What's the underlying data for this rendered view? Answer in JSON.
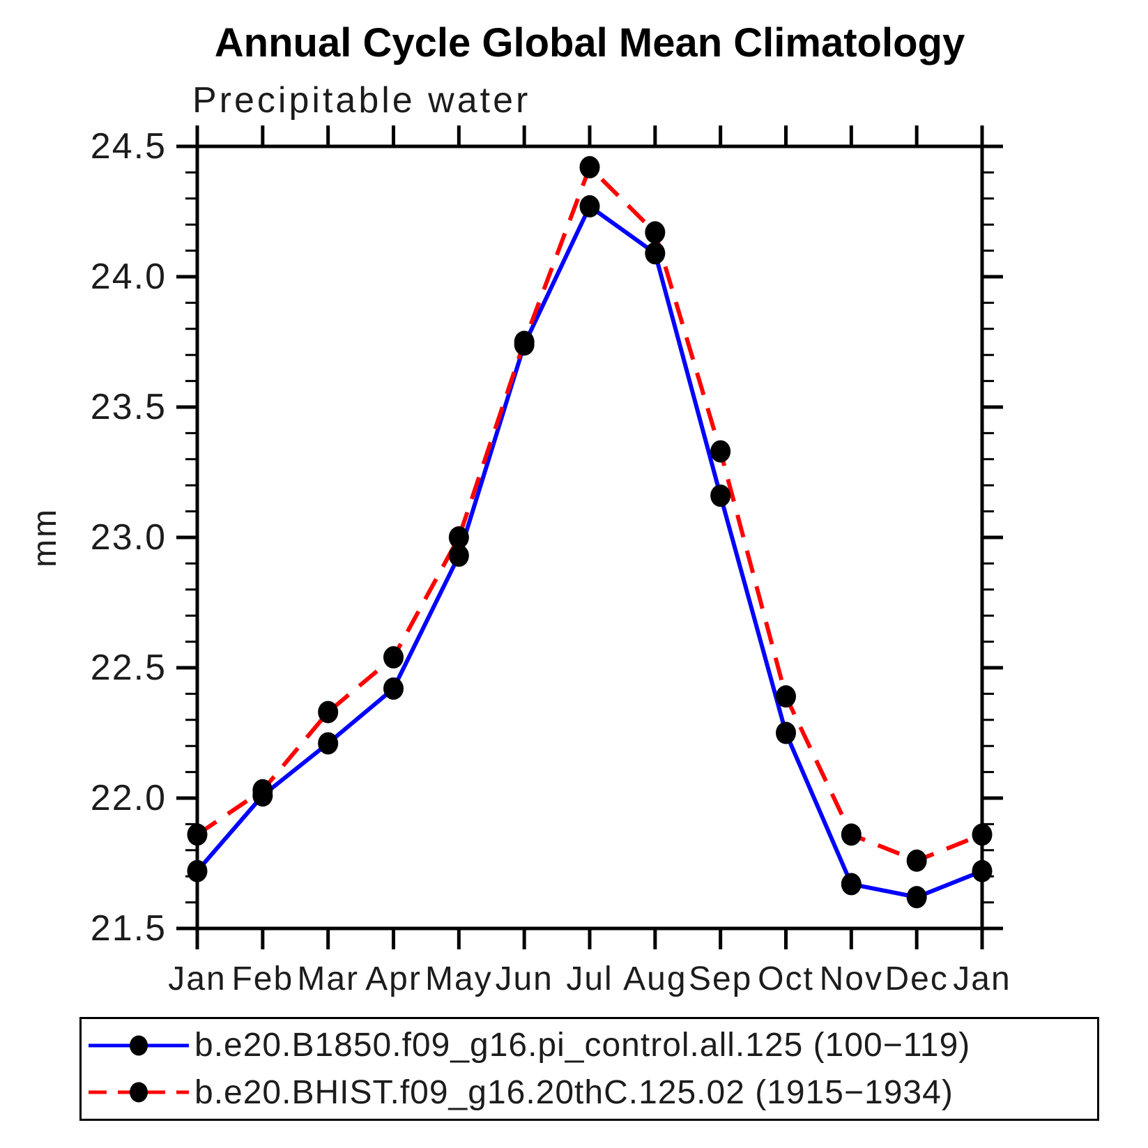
{
  "title": "Annual Cycle Global Mean Climatology",
  "subtitle": "Precipitable water",
  "chart_data": {
    "type": "line",
    "categories": [
      "Jan",
      "Feb",
      "Mar",
      "Apr",
      "May",
      "Jun",
      "Jul",
      "Aug",
      "Sep",
      "Oct",
      "Nov",
      "Dec",
      "Jan"
    ],
    "xlabel": "",
    "ylabel": "mm",
    "ylim": [
      21.5,
      24.5
    ],
    "y_major_step": 0.5,
    "y_minor_step": 0.1,
    "grid": false,
    "legend_position": "bottom",
    "frame_color": "#000000",
    "marker_color": "#000000",
    "series": [
      {
        "name": "b.e20.B1850.f09_g16.pi_control.all.125 (100−119)",
        "color": "#0000ff",
        "style": "solid",
        "marker": "filled-circle",
        "values": [
          21.72,
          22.01,
          22.21,
          22.42,
          22.93,
          23.74,
          24.27,
          24.09,
          23.16,
          22.25,
          21.67,
          21.62,
          21.72
        ]
      },
      {
        "name": "b.e20.BHIST.f09_g16.20thC.125.02 (1915−1934)",
        "color": "#ff0000",
        "style": "dashed",
        "marker": "filled-circle",
        "values": [
          21.86,
          22.03,
          22.33,
          22.54,
          23.0,
          23.75,
          24.42,
          24.17,
          23.33,
          22.39,
          21.86,
          21.76,
          21.86
        ]
      }
    ]
  }
}
